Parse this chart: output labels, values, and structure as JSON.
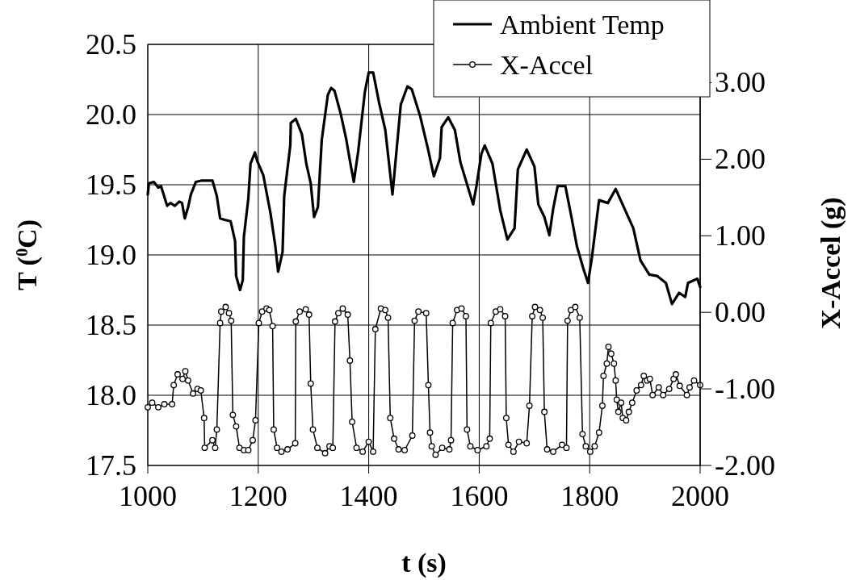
{
  "chart_data": {
    "type": "line",
    "xlabel": "t (s)",
    "ylabel": "T ($^{0}$C)",
    "y2label": "X-Accel (g)",
    "xlim": [
      1000,
      2000
    ],
    "xticks": [
      1000,
      1200,
      1400,
      1600,
      1800,
      2000
    ],
    "ylim": [
      17.5,
      20.5
    ],
    "yticks": [
      17.5,
      {
        "value": 18,
        "label": "18.0"
      },
      18.5,
      {
        "value": 19,
        "label": "19.0"
      },
      19.5,
      {
        "value": 20,
        "label": "20.0"
      },
      20.5
    ],
    "y2lim": [
      -2,
      3.5
    ],
    "y2ticks": [
      {
        "value": -2,
        "label": "-2.00"
      },
      {
        "value": -1,
        "label": "-1.00"
      },
      {
        "value": 0,
        "label": "0.00"
      },
      {
        "value": 1,
        "label": "1.00"
      },
      {
        "value": 2,
        "label": "2.00"
      },
      {
        "value": 3,
        "label": "3.00"
      }
    ],
    "grid": true,
    "legend": "top right",
    "line_style": "solid",
    "series": [
      {
        "name": "Ambient Temp",
        "color": "#000000",
        "marker": "none",
        "x": [
          1000,
          1002,
          1011,
          1019,
          1024,
          1035,
          1041,
          1049,
          1057,
          1062,
          1067,
          1073,
          1078,
          1087,
          1098,
          1117,
          1125,
          1131,
          1139,
          1150,
          1158,
          1160,
          1167,
          1172,
          1174,
          1182,
          1186,
          1194,
          1198,
          1209,
          1222,
          1231,
          1236,
          1244,
          1247,
          1258,
          1259,
          1268,
          1279,
          1287,
          1295,
          1301,
          1308,
          1315,
          1326,
          1332,
          1338,
          1349,
          1359,
          1366,
          1373,
          1381,
          1393,
          1400,
          1408,
          1419,
          1430,
          1443,
          1458,
          1470,
          1478,
          1493,
          1507,
          1518,
          1529,
          1532,
          1544,
          1556,
          1566,
          1579,
          1589,
          1595,
          1604,
          1610,
          1624,
          1638,
          1651,
          1664,
          1670,
          1686,
          1700,
          1707,
          1718,
          1727,
          1734,
          1742,
          1756,
          1766,
          1777,
          1788,
          1797,
          1804,
          1817,
          1833,
          1847,
          1863,
          1879,
          1892,
          1908,
          1922,
          1938,
          1949,
          1962,
          1973,
          1978,
          1995,
          2000
        ],
        "values": [
          19.43,
          19.51,
          19.52,
          19.48,
          19.49,
          19.35,
          19.37,
          19.35,
          19.38,
          19.37,
          19.26,
          19.34,
          19.43,
          19.52,
          19.53,
          19.53,
          19.42,
          19.26,
          19.25,
          19.24,
          19.1,
          18.85,
          18.75,
          18.82,
          19.13,
          19.4,
          19.65,
          19.73,
          19.67,
          19.57,
          19.3,
          19.06,
          18.88,
          19.02,
          19.42,
          19.78,
          19.94,
          19.97,
          19.86,
          19.65,
          19.51,
          19.27,
          19.34,
          19.82,
          20.14,
          20.19,
          20.17,
          20.01,
          19.83,
          19.67,
          19.52,
          19.74,
          20.16,
          20.3,
          20.3,
          20.08,
          19.89,
          19.43,
          20.07,
          20.2,
          20.18,
          19.99,
          19.76,
          19.56,
          19.69,
          19.91,
          19.98,
          19.89,
          19.66,
          19.49,
          19.36,
          19.49,
          19.72,
          19.78,
          19.65,
          19.32,
          19.11,
          19.19,
          19.61,
          19.75,
          19.63,
          19.36,
          19.27,
          19.14,
          19.33,
          19.49,
          19.49,
          19.29,
          19.06,
          18.91,
          18.8,
          18.98,
          19.39,
          19.37,
          19.47,
          19.33,
          19.19,
          18.96,
          18.86,
          18.85,
          18.8,
          18.65,
          18.73,
          18.7,
          18.8,
          18.83,
          18.77
        ]
      },
      {
        "name": "X-Accel",
        "color": "#000000",
        "marker": "circle",
        "axis": "y2",
        "x": [
          1000,
          1008,
          1019,
          1030,
          1044,
          1047,
          1054,
          1063,
          1068,
          1073,
          1082,
          1090,
          1096,
          1102,
          1103,
          1117,
          1122,
          1125,
          1131,
          1133,
          1141,
          1147,
          1151,
          1154,
          1160,
          1166,
          1174,
          1182,
          1190,
          1195,
          1201,
          1207,
          1215,
          1220,
          1226,
          1228,
          1234,
          1242,
          1253,
          1267,
          1268,
          1275,
          1286,
          1292,
          1295,
          1299,
          1307,
          1321,
          1329,
          1335,
          1339,
          1345,
          1353,
          1362,
          1366,
          1370,
          1378,
          1389,
          1400,
          1408,
          1412,
          1422,
          1430,
          1435,
          1439,
          1446,
          1454,
          1465,
          1479,
          1483,
          1490,
          1504,
          1508,
          1511,
          1514,
          1521,
          1533,
          1546,
          1549,
          1552,
          1560,
          1568,
          1576,
          1578,
          1584,
          1597,
          1613,
          1619,
          1621,
          1630,
          1638,
          1647,
          1649,
          1653,
          1662,
          1672,
          1686,
          1691,
          1696,
          1701,
          1710,
          1715,
          1718,
          1723,
          1734,
          1750,
          1758,
          1760,
          1766,
          1774,
          1782,
          1787,
          1793,
          1801,
          1809,
          1817,
          1823,
          1825,
          1831,
          1834,
          1839,
          1844,
          1847,
          1849,
          1852,
          1857,
          1860,
          1866,
          1871,
          1877,
          1885,
          1893,
          1898,
          1904,
          1909,
          1914,
          1925,
          1933,
          1944,
          1952,
          1956,
          1963,
          1976,
          1981,
          1989,
          2000
        ],
        "values": [
          -1.24,
          -1.18,
          -1.24,
          -1.2,
          -1.2,
          -0.95,
          -0.81,
          -0.87,
          -0.77,
          -0.89,
          -1.06,
          -1.0,
          -1.02,
          -1.38,
          -1.77,
          -1.67,
          -1.77,
          -1.53,
          -0.14,
          0.01,
          0.07,
          -0.01,
          -0.11,
          -1.34,
          -1.49,
          -1.77,
          -1.8,
          -1.8,
          -1.67,
          -1.41,
          -0.14,
          0.01,
          0.05,
          0.03,
          -0.18,
          -1.53,
          -1.77,
          -1.82,
          -1.79,
          -1.71,
          -0.12,
          0.01,
          0.04,
          -0.03,
          -0.93,
          -1.53,
          -1.77,
          -1.84,
          -1.75,
          -1.77,
          -0.12,
          -0.01,
          0.05,
          -0.03,
          -0.63,
          -1.43,
          -1.77,
          -1.82,
          -1.69,
          -1.82,
          -0.22,
          0.05,
          0.03,
          -0.07,
          -1.38,
          -1.65,
          -1.79,
          -1.8,
          -1.61,
          -0.11,
          0.01,
          -0.01,
          -0.95,
          -1.57,
          -1.75,
          -1.86,
          -1.77,
          -1.79,
          -1.67,
          -0.14,
          0.03,
          0.05,
          -0.05,
          -1.53,
          -1.75,
          -1.8,
          -1.75,
          -1.65,
          -0.14,
          0.01,
          0.04,
          -0.05,
          -1.38,
          -1.73,
          -1.82,
          -1.69,
          -1.71,
          -1.22,
          -0.05,
          0.07,
          0.03,
          -0.07,
          -1.3,
          -1.79,
          -1.82,
          -1.73,
          -1.77,
          -0.11,
          0.03,
          0.07,
          -0.07,
          -1.59,
          -1.75,
          -1.82,
          -1.75,
          -1.57,
          -1.22,
          -0.83,
          -0.67,
          -0.45,
          -0.54,
          -0.67,
          -0.89,
          -1.14,
          -1.3,
          -1.18,
          -1.38,
          -1.41,
          -1.3,
          -1.18,
          -1.02,
          -0.95,
          -0.83,
          -0.89,
          -0.87,
          -1.08,
          -0.98,
          -1.08,
          -1.0,
          -0.87,
          -0.81,
          -0.96,
          -1.08,
          -0.98,
          -0.89,
          -0.95
        ]
      }
    ]
  }
}
